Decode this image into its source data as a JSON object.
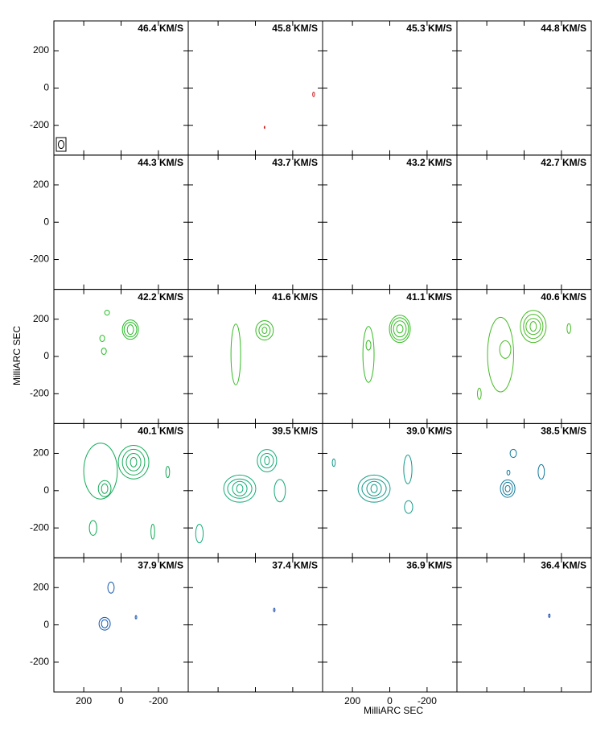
{
  "chart_data": {
    "type": "channel_map",
    "xlabel": "MilliARC SEC",
    "ylabel": "MilliARC SEC",
    "xlim": [
      360,
      -360
    ],
    "ylim": [
      -360,
      360
    ],
    "xticks": [
      200,
      0,
      -200
    ],
    "yticks": [
      200,
      0,
      -200
    ],
    "panels": [
      {
        "label": "46.4 KM/S"
      },
      {
        "label": "45.8 KM/S",
        "color": "#cc2222",
        "contours": [
          [
            -312,
            -34,
            5,
            12
          ],
          [
            -49,
            -211,
            2,
            6
          ]
        ]
      },
      {
        "label": "45.3 KM/S"
      },
      {
        "label": "44.8 KM/S"
      },
      {
        "label": "44.3 KM/S"
      },
      {
        "label": "43.7 KM/S"
      },
      {
        "label": "43.2 KM/S"
      },
      {
        "label": "42.7 KM/S"
      },
      {
        "label": "42.2 KM/S",
        "color": "#22bb22",
        "contours": [
          [
            -50,
            144,
            17,
            26
          ],
          [
            -50,
            144,
            34,
            39
          ],
          [
            -50,
            144,
            43,
            52
          ],
          [
            75,
            235,
            13,
            13
          ],
          [
            101,
            97,
            13,
            17
          ],
          [
            92,
            28,
            13,
            17
          ]
        ]
      },
      {
        "label": "41.6 KM/S",
        "color": "#33bb22",
        "contours": [
          [
            -49,
            140,
            13,
            17
          ],
          [
            -49,
            140,
            30,
            34
          ],
          [
            -49,
            140,
            47,
            52
          ],
          [
            105,
            11,
            26,
            163
          ]
        ]
      },
      {
        "label": "41.1 KM/S",
        "color": "#33bb22",
        "contours": [
          [
            -54,
            148,
            17,
            22
          ],
          [
            -54,
            148,
            34,
            43
          ],
          [
            -54,
            148,
            47,
            60
          ],
          [
            -54,
            148,
            56,
            73
          ],
          [
            114,
            11,
            30,
            150
          ],
          [
            114,
            60,
            13,
            26
          ]
        ]
      },
      {
        "label": "40.6 KM/S",
        "color": "#44bb22",
        "contours": [
          [
            -49,
            161,
            17,
            26
          ],
          [
            -49,
            161,
            39,
            43
          ],
          [
            -49,
            161,
            52,
            65
          ],
          [
            -49,
            161,
            69,
            86
          ],
          [
            101,
            37,
            30,
            47
          ],
          [
            126,
            10,
            70,
            200
          ],
          [
            -240,
            150,
            10,
            26
          ],
          [
            240,
            -200,
            10,
            30
          ]
        ]
      },
      {
        "label": "40.1 KM/S",
        "color": "#11aa55",
        "contours": [
          [
            -67,
            153,
            17,
            26
          ],
          [
            -67,
            153,
            39,
            47
          ],
          [
            -67,
            153,
            60,
            69
          ],
          [
            -67,
            153,
            82,
            90
          ],
          [
            88,
            11,
            17,
            26
          ],
          [
            88,
            11,
            34,
            43
          ],
          [
            110,
            105,
            90,
            150
          ],
          [
            150,
            -200,
            20,
            40
          ],
          [
            -250,
            100,
            10,
            30
          ],
          [
            -170,
            -220,
            10,
            40
          ]
        ]
      },
      {
        "label": "39.5 KM/S",
        "color": "#11aa77",
        "contours": [
          [
            84,
            11,
            17,
            22
          ],
          [
            84,
            11,
            39,
            39
          ],
          [
            84,
            11,
            65,
            52
          ],
          [
            84,
            11,
            86,
            73
          ],
          [
            -62,
            161,
            13,
            22
          ],
          [
            -62,
            161,
            35,
            39
          ],
          [
            -62,
            161,
            52,
            60
          ],
          [
            -131,
            0,
            30,
            60
          ],
          [
            300,
            -230,
            20,
            50
          ]
        ]
      },
      {
        "label": "39.0 KM/S",
        "color": "#119988",
        "contours": [
          [
            84,
            11,
            17,
            22
          ],
          [
            84,
            11,
            39,
            39
          ],
          [
            84,
            11,
            65,
            52
          ],
          [
            84,
            11,
            86,
            73
          ],
          [
            -97,
            114,
            22,
            77
          ],
          [
            -101,
            -88,
            22,
            34
          ],
          [
            300,
            150,
            8,
            20
          ]
        ]
      },
      {
        "label": "38.5 KM/S",
        "color": "#117799",
        "contours": [
          [
            88,
            11,
            13,
            17
          ],
          [
            88,
            11,
            26,
            34
          ],
          [
            88,
            11,
            39,
            47
          ],
          [
            58,
            200,
            17,
            22
          ],
          [
            -92,
            101,
            17,
            39
          ],
          [
            84,
            97,
            8,
            13
          ]
        ]
      },
      {
        "label": "37.9 KM/S",
        "color": "#1155aa",
        "contours": [
          [
            88,
            6,
            17,
            22
          ],
          [
            88,
            6,
            30,
            34
          ],
          [
            54,
            200,
            17,
            30
          ],
          [
            -80,
            41,
            4,
            9
          ]
        ]
      },
      {
        "label": "37.4 KM/S",
        "color": "#1144aa",
        "contours": [
          [
            -101,
            80,
            4,
            9
          ]
        ]
      },
      {
        "label": "36.9 KM/S"
      },
      {
        "label": "36.4 KM/S",
        "color": "#1144aa",
        "contours": [
          [
            -135,
            49,
            4,
            9
          ]
        ]
      }
    ]
  }
}
